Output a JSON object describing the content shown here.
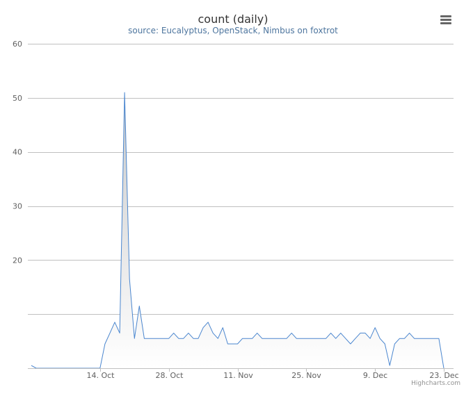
{
  "chart_data": {
    "type": "area",
    "title": "count (daily)",
    "subtitle": "source: Eucalyptus, OpenStack, Nimbus on foxtrot",
    "xlabel": "",
    "ylabel": "",
    "x_start": "2013-09-30",
    "x_end": "2013-12-23",
    "x_tick_labels": [
      "14. Oct",
      "28. Oct",
      "11. Nov",
      "25. Nov",
      "9. Dec",
      "23. Dec"
    ],
    "x_tick_dates": [
      "2013-10-14",
      "2013-10-28",
      "2013-11-11",
      "2013-11-25",
      "2013-12-09",
      "2013-12-23"
    ],
    "y_tick_values": [
      20,
      30,
      40,
      50,
      60
    ],
    "ylim": [
      0,
      60
    ],
    "grid": true,
    "legend": "none",
    "series": [
      {
        "values": [
          [
            "2013-09-30",
            0.5
          ],
          [
            "2013-10-01",
            0
          ],
          [
            "2013-10-02",
            0
          ],
          [
            "2013-10-03",
            0
          ],
          [
            "2013-10-04",
            0
          ],
          [
            "2013-10-05",
            0
          ],
          [
            "2013-10-06",
            0
          ],
          [
            "2013-10-07",
            0
          ],
          [
            "2013-10-08",
            0
          ],
          [
            "2013-10-09",
            0
          ],
          [
            "2013-10-10",
            0
          ],
          [
            "2013-10-11",
            0
          ],
          [
            "2013-10-12",
            0
          ],
          [
            "2013-10-13",
            0
          ],
          [
            "2013-10-14",
            0
          ],
          [
            "2013-10-15",
            4.5
          ],
          [
            "2013-10-16",
            6.5
          ],
          [
            "2013-10-17",
            8.5
          ],
          [
            "2013-10-18",
            6.5
          ],
          [
            "2013-10-19",
            51
          ],
          [
            "2013-10-20",
            16.5
          ],
          [
            "2013-10-21",
            5.5
          ],
          [
            "2013-10-22",
            11.5
          ],
          [
            "2013-10-23",
            5.5
          ],
          [
            "2013-10-24",
            5.5
          ],
          [
            "2013-10-25",
            5.5
          ],
          [
            "2013-10-26",
            5.5
          ],
          [
            "2013-10-27",
            5.5
          ],
          [
            "2013-10-28",
            5.5
          ],
          [
            "2013-10-29",
            6.5
          ],
          [
            "2013-10-30",
            5.5
          ],
          [
            "2013-10-31",
            5.5
          ],
          [
            "2013-11-01",
            6.5
          ],
          [
            "2013-11-02",
            5.5
          ],
          [
            "2013-11-03",
            5.5
          ],
          [
            "2013-11-04",
            7.5
          ],
          [
            "2013-11-05",
            8.5
          ],
          [
            "2013-11-06",
            6.5
          ],
          [
            "2013-11-07",
            5.5
          ],
          [
            "2013-11-08",
            7.5
          ],
          [
            "2013-11-09",
            4.5
          ],
          [
            "2013-11-10",
            4.5
          ],
          [
            "2013-11-11",
            4.5
          ],
          [
            "2013-11-12",
            5.5
          ],
          [
            "2013-11-13",
            5.5
          ],
          [
            "2013-11-14",
            5.5
          ],
          [
            "2013-11-15",
            6.5
          ],
          [
            "2013-11-16",
            5.5
          ],
          [
            "2013-11-17",
            5.5
          ],
          [
            "2013-11-18",
            5.5
          ],
          [
            "2013-11-19",
            5.5
          ],
          [
            "2013-11-20",
            5.5
          ],
          [
            "2013-11-21",
            5.5
          ],
          [
            "2013-11-22",
            6.5
          ],
          [
            "2013-11-23",
            5.5
          ],
          [
            "2013-11-24",
            5.5
          ],
          [
            "2013-11-25",
            5.5
          ],
          [
            "2013-11-26",
            5.5
          ],
          [
            "2013-11-27",
            5.5
          ],
          [
            "2013-11-28",
            5.5
          ],
          [
            "2013-11-29",
            5.5
          ],
          [
            "2013-11-30",
            6.5
          ],
          [
            "2013-12-01",
            5.5
          ],
          [
            "2013-12-02",
            6.5
          ],
          [
            "2013-12-03",
            5.5
          ],
          [
            "2013-12-04",
            4.5
          ],
          [
            "2013-12-05",
            5.5
          ],
          [
            "2013-12-06",
            6.5
          ],
          [
            "2013-12-07",
            6.5
          ],
          [
            "2013-12-08",
            5.5
          ],
          [
            "2013-12-09",
            7.5
          ],
          [
            "2013-12-10",
            5.5
          ],
          [
            "2013-12-11",
            4.5
          ],
          [
            "2013-12-12",
            0.5
          ],
          [
            "2013-12-13",
            4.5
          ],
          [
            "2013-12-14",
            5.5
          ],
          [
            "2013-12-15",
            5.5
          ],
          [
            "2013-12-16",
            6.5
          ],
          [
            "2013-12-17",
            5.5
          ],
          [
            "2013-12-18",
            5.5
          ],
          [
            "2013-12-19",
            5.5
          ],
          [
            "2013-12-20",
            5.5
          ],
          [
            "2013-12-21",
            5.5
          ],
          [
            "2013-12-22",
            5.5
          ],
          [
            "2013-12-23",
            0
          ]
        ]
      }
    ]
  },
  "credits": "Highcharts.com",
  "menu_icon": "hamburger-menu-icon",
  "colors": {
    "line": "#4a86cf",
    "area_top": "#c8c8c8",
    "area_bottom": "#ffffff",
    "grid": "#c0c0c0",
    "axis_text": "#606060",
    "title": "#333333",
    "subtitle": "#4d759e",
    "credits": "#909090"
  }
}
